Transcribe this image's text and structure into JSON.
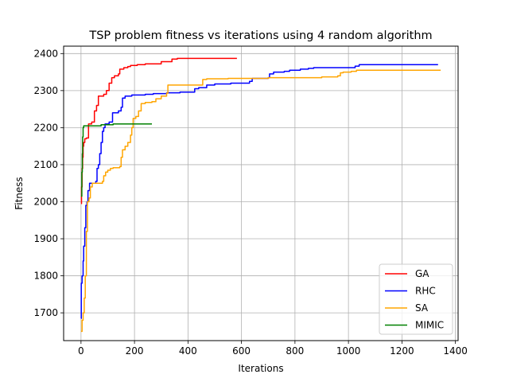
{
  "chart_data": {
    "type": "line",
    "title": "TSP problem fitness vs iterations using 4 random algorithm",
    "xlabel": "Iterations",
    "ylabel": "Fitness",
    "xlim": [
      -65,
      1410
    ],
    "ylim": [
      1625,
      2420
    ],
    "xticks": [
      0,
      200,
      400,
      600,
      800,
      1000,
      1200,
      1400
    ],
    "yticks": [
      1700,
      1800,
      1900,
      2000,
      2100,
      2200,
      2300,
      2400
    ],
    "grid": true,
    "legend_position": "lower-right",
    "series": [
      {
        "name": "GA",
        "color": "#ff0000",
        "points": [
          [
            0,
            1995
          ],
          [
            2,
            2040
          ],
          [
            4,
            2090
          ],
          [
            6,
            2120
          ],
          [
            8,
            2150
          ],
          [
            10,
            2160
          ],
          [
            14,
            2170
          ],
          [
            20,
            2172
          ],
          [
            28,
            2210
          ],
          [
            40,
            2215
          ],
          [
            50,
            2245
          ],
          [
            58,
            2260
          ],
          [
            65,
            2285
          ],
          [
            85,
            2290
          ],
          [
            95,
            2300
          ],
          [
            105,
            2320
          ],
          [
            115,
            2335
          ],
          [
            125,
            2340
          ],
          [
            140,
            2345
          ],
          [
            145,
            2358
          ],
          [
            160,
            2362
          ],
          [
            175,
            2365
          ],
          [
            185,
            2368
          ],
          [
            210,
            2370
          ],
          [
            240,
            2372
          ],
          [
            300,
            2378
          ],
          [
            340,
            2385
          ],
          [
            360,
            2387
          ],
          [
            420,
            2387
          ],
          [
            583,
            2387
          ]
        ]
      },
      {
        "name": "RHC",
        "color": "#0000ff",
        "points": [
          [
            0,
            1685
          ],
          [
            1,
            1780
          ],
          [
            4,
            1800
          ],
          [
            8,
            1840
          ],
          [
            10,
            1880
          ],
          [
            14,
            1930
          ],
          [
            18,
            1990
          ],
          [
            22,
            2000
          ],
          [
            26,
            2030
          ],
          [
            32,
            2050
          ],
          [
            45,
            2050
          ],
          [
            55,
            2055
          ],
          [
            60,
            2090
          ],
          [
            65,
            2100
          ],
          [
            70,
            2130
          ],
          [
            75,
            2160
          ],
          [
            80,
            2190
          ],
          [
            85,
            2200
          ],
          [
            90,
            2210
          ],
          [
            105,
            2215
          ],
          [
            118,
            2240
          ],
          [
            140,
            2245
          ],
          [
            150,
            2255
          ],
          [
            155,
            2280
          ],
          [
            165,
            2285
          ],
          [
            190,
            2288
          ],
          [
            240,
            2290
          ],
          [
            270,
            2292
          ],
          [
            320,
            2294
          ],
          [
            370,
            2296
          ],
          [
            420,
            2296
          ],
          [
            425,
            2305
          ],
          [
            440,
            2308
          ],
          [
            470,
            2315
          ],
          [
            500,
            2318
          ],
          [
            560,
            2320
          ],
          [
            630,
            2325
          ],
          [
            640,
            2333
          ],
          [
            700,
            2335
          ],
          [
            705,
            2345
          ],
          [
            720,
            2350
          ],
          [
            760,
            2352
          ],
          [
            780,
            2355
          ],
          [
            820,
            2358
          ],
          [
            850,
            2360
          ],
          [
            870,
            2362
          ],
          [
            1000,
            2362
          ],
          [
            1025,
            2366
          ],
          [
            1040,
            2370
          ],
          [
            1335,
            2370
          ]
        ]
      },
      {
        "name": "SA",
        "color": "#ffa500",
        "points": [
          [
            0,
            1650
          ],
          [
            4,
            1680
          ],
          [
            8,
            1700
          ],
          [
            12,
            1740
          ],
          [
            16,
            1800
          ],
          [
            20,
            1920
          ],
          [
            24,
            2000
          ],
          [
            30,
            2010
          ],
          [
            35,
            2040
          ],
          [
            42,
            2050
          ],
          [
            80,
            2055
          ],
          [
            85,
            2070
          ],
          [
            92,
            2080
          ],
          [
            100,
            2085
          ],
          [
            110,
            2090
          ],
          [
            120,
            2092
          ],
          [
            145,
            2095
          ],
          [
            150,
            2120
          ],
          [
            155,
            2140
          ],
          [
            165,
            2150
          ],
          [
            175,
            2160
          ],
          [
            185,
            2180
          ],
          [
            190,
            2200
          ],
          [
            195,
            2225
          ],
          [
            205,
            2230
          ],
          [
            215,
            2245
          ],
          [
            225,
            2265
          ],
          [
            240,
            2268
          ],
          [
            265,
            2270
          ],
          [
            280,
            2278
          ],
          [
            300,
            2285
          ],
          [
            320,
            2293
          ],
          [
            325,
            2315
          ],
          [
            360,
            2315
          ],
          [
            450,
            2315
          ],
          [
            455,
            2330
          ],
          [
            470,
            2332
          ],
          [
            550,
            2333
          ],
          [
            700,
            2335
          ],
          [
            870,
            2335
          ],
          [
            900,
            2337
          ],
          [
            960,
            2340
          ],
          [
            970,
            2348
          ],
          [
            980,
            2350
          ],
          [
            1010,
            2352
          ],
          [
            1030,
            2355
          ],
          [
            1200,
            2355
          ],
          [
            1345,
            2355
          ]
        ]
      },
      {
        "name": "MIMIC",
        "color": "#008000",
        "points": [
          [
            0,
            2015
          ],
          [
            3,
            2080
          ],
          [
            5,
            2130
          ],
          [
            6,
            2175
          ],
          [
            8,
            2200
          ],
          [
            10,
            2205
          ],
          [
            60,
            2205
          ],
          [
            75,
            2208
          ],
          [
            120,
            2210
          ],
          [
            200,
            2210
          ],
          [
            265,
            2210
          ]
        ]
      }
    ]
  }
}
